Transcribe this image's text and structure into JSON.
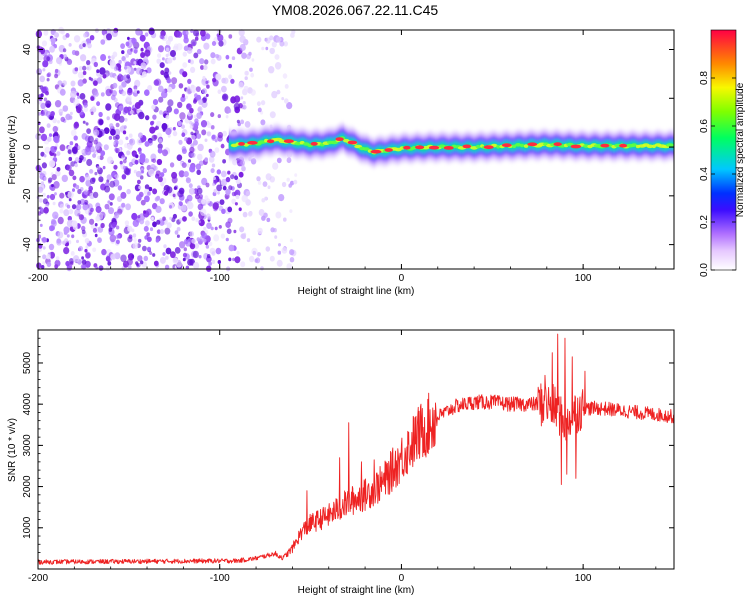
{
  "figure_title": "YM08.2026.067.22.11.C45",
  "chart_data": [
    {
      "type": "heatmap",
      "title": "YM08.2026.067.22.11.C45",
      "xlabel": "Height of straight line (km)",
      "ylabel": "Frequency (Hz)",
      "xlim": [
        -200,
        150
      ],
      "ylim": [
        -50,
        48
      ],
      "xticks": [
        -200,
        -100,
        0,
        100
      ],
      "yticks": [
        -40,
        -20,
        0,
        20,
        40
      ],
      "colorbar": {
        "label": "Normalized spectral amplitude",
        "range": [
          0,
          1
        ],
        "ticks": [
          0.0,
          0.2,
          0.4,
          0.6,
          0.8
        ],
        "tick_labels": [
          "0.0",
          "0.2",
          "0.4",
          "0.6",
          "0.8"
        ],
        "colormap": [
          "#ffffff",
          "#b98cff",
          "#7a1fe0",
          "#0000ff",
          "#00d7ff",
          "#00ff60",
          "#f0ff00",
          "#ff8000",
          "#ff0033"
        ]
      },
      "noise_region_x": [
        -200,
        -70
      ],
      "signal_ridge": {
        "x": [
          -90,
          -80,
          -70,
          -60,
          -50,
          -40,
          -32,
          -28,
          -20,
          -15,
          -10,
          0,
          20,
          40,
          60,
          80,
          100,
          120,
          150
        ],
        "freq": [
          1,
          1.5,
          3,
          2,
          1,
          1.5,
          3.5,
          2,
          -1,
          -2,
          -1.5,
          -0.5,
          0,
          0,
          0.5,
          1,
          0.5,
          0.5,
          0.5
        ]
      },
      "red_peaks_x": [
        -88,
        -82,
        -72,
        -62,
        -48,
        -34,
        -27,
        -14,
        -7,
        3,
        10,
        18,
        26,
        36,
        48,
        58,
        72,
        86,
        96,
        112,
        122
      ]
    },
    {
      "type": "line",
      "xlabel": "Height of straight line (km)",
      "ylabel": "SNR (10 * v/v)",
      "xlim": [
        -200,
        150
      ],
      "ylim": [
        0,
        5800
      ],
      "xticks": [
        -200,
        -100,
        0,
        100
      ],
      "yticks": [
        1000,
        2000,
        3000,
        4000,
        5000
      ],
      "color": "#ee2222",
      "envelope": {
        "x": [
          -200,
          -90,
          -80,
          -70,
          -65,
          -60,
          -55,
          -50,
          -40,
          -30,
          -20,
          -10,
          0,
          10,
          20,
          30,
          40,
          50,
          60,
          70,
          80,
          85,
          90,
          95,
          100,
          110,
          120,
          130,
          140,
          150
        ],
        "snr": [
          170,
          200,
          260,
          370,
          270,
          500,
          900,
          1100,
          1300,
          1600,
          1800,
          2100,
          2700,
          3300,
          3700,
          3950,
          4050,
          4050,
          4000,
          4000,
          4000,
          3900,
          3500,
          3800,
          3900,
          3900,
          3850,
          3800,
          3750,
          3700
        ]
      },
      "spikes": [
        {
          "x": -29,
          "snr": 3550
        },
        {
          "x": -34,
          "snr": 2700
        },
        {
          "x": -52,
          "snr": 1900
        },
        {
          "x": -22,
          "snr": 2600
        },
        {
          "x": -15,
          "snr": 2650
        },
        {
          "x": 86,
          "snr": 5700
        },
        {
          "x": 88,
          "snr": 2050
        },
        {
          "x": 90,
          "snr": 5600
        },
        {
          "x": 91,
          "snr": 2300
        },
        {
          "x": 94,
          "snr": 5150
        },
        {
          "x": 96,
          "snr": 2200
        },
        {
          "x": 83,
          "snr": 5250
        },
        {
          "x": 79,
          "snr": 4700
        },
        {
          "x": 101,
          "snr": 4800
        }
      ]
    }
  ]
}
